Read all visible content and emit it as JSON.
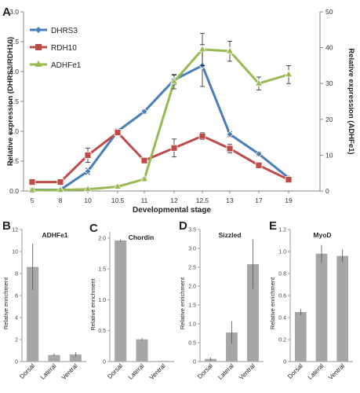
{
  "chart_data": [
    {
      "panel_label": "A",
      "type": "line",
      "xlabel": "Developmental stage",
      "ylabel_left": "Relative expression (DHRS3/RDH10)",
      "ylabel_right": "Relative expression (ADHFe1)",
      "categories": [
        "5",
        "8",
        "10",
        "10.5",
        "11",
        "12",
        "12.5",
        "13",
        "17",
        "19"
      ],
      "ylim_left": [
        0,
        3
      ],
      "yticks_left": [
        "0.0",
        "0.5",
        "1.0",
        "1.5",
        "2.0",
        "2.5",
        "3.0"
      ],
      "ylim_right": [
        0,
        50
      ],
      "yticks_right": [
        "0",
        "10",
        "20",
        "30",
        "40",
        "50"
      ],
      "legend_placement": "top-left",
      "series": [
        {
          "name": "DHRS3",
          "axis": "left",
          "color": "#4a7ebb",
          "marker": "diamond",
          "values": [
            0.02,
            0.02,
            0.33,
            1.0,
            1.33,
            1.86,
            2.1,
            0.95,
            0.62,
            0.22
          ],
          "errors": [
            0.03,
            0.02,
            0.05,
            0.04,
            0.03,
            0.08,
            0.35,
            0.04,
            0.03,
            0.02
          ]
        },
        {
          "name": "RDH10",
          "axis": "left",
          "color": "#be4b48",
          "marker": "square",
          "values": [
            0.15,
            0.15,
            0.6,
            0.98,
            0.51,
            0.72,
            0.92,
            0.71,
            0.43,
            0.19
          ],
          "errors": [
            0.02,
            0.02,
            0.12,
            0.04,
            0.04,
            0.15,
            0.06,
            0.07,
            0.04,
            0.02
          ]
        },
        {
          "name": "ADHFe1",
          "axis": "right",
          "color": "#98b954",
          "marker": "triangle",
          "values": [
            0.2,
            0.3,
            0.5,
            1.2,
            3.3,
            30.5,
            39.5,
            39.0,
            30.0,
            32.5
          ],
          "errors": [
            0.3,
            0.2,
            0.3,
            0.3,
            0.3,
            2.0,
            4.5,
            2.8,
            1.8,
            2.5
          ]
        }
      ]
    },
    {
      "panel_label": "B",
      "type": "bar",
      "title": "ADHFe1",
      "ylabel": "Relative enrichment",
      "categories": [
        "Dorsal",
        "Lateral",
        "Ventral"
      ],
      "values": [
        8.6,
        0.6,
        0.65
      ],
      "errors": [
        2.1,
        0.12,
        0.2
      ],
      "ylim": [
        0,
        12
      ],
      "yticks": [
        "0",
        "2",
        "4",
        "6",
        "8",
        "10",
        "12"
      ]
    },
    {
      "panel_label": "C",
      "type": "bar",
      "title": "Chordin",
      "ylabel": "Relative enrichment",
      "categories": [
        "Dorsal",
        "Lateral",
        "Ventral"
      ],
      "values": [
        1.96,
        0.36,
        0.01
      ],
      "errors": [
        0.02,
        0.02,
        0.0
      ],
      "ylim": [
        0,
        2.1
      ],
      "yticks": [
        "0",
        "0.5",
        "1.0",
        "1.5",
        "2.0"
      ]
    },
    {
      "panel_label": "D",
      "type": "bar",
      "title": "Sizzled",
      "ylabel": "Relative enrichment",
      "categories": [
        "Dorsal",
        "Lateral",
        "Ventral"
      ],
      "values": [
        0.07,
        0.77,
        2.58
      ],
      "errors": [
        0.04,
        0.3,
        0.65
      ],
      "ylim": [
        0,
        3.5
      ],
      "yticks": [
        "0",
        "0.5",
        "1.0",
        "1.5",
        "2.0",
        "2.5",
        "3.0",
        "3.5"
      ]
    },
    {
      "panel_label": "E",
      "type": "bar",
      "title": "MyoD",
      "ylabel": "Relative enrichment",
      "categories": [
        "Dorsal",
        "Lateral",
        "Ventral"
      ],
      "values": [
        0.45,
        0.98,
        0.96
      ],
      "errors": [
        0.03,
        0.08,
        0.06
      ],
      "ylim": [
        0,
        1.2
      ],
      "yticks": [
        "0",
        "0.2",
        "0.4",
        "0.6",
        "0.8",
        "1.0",
        "1.2"
      ]
    }
  ]
}
